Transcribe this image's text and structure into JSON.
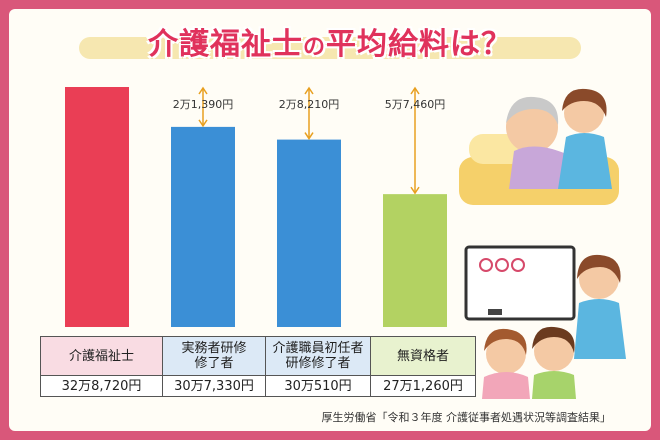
{
  "title_main": "介護福祉士",
  "title_no": "の",
  "title_tail": "平均給料は？",
  "source": "厚生労働省「令和３年度 介護従事者処遇状況等調査結果」",
  "chart_data": {
    "type": "bar",
    "categories": [
      "介護福祉士",
      "実務者研修\n修了者",
      "介護職員初任者\n研修修了者",
      "無資格者"
    ],
    "values": [
      328720,
      307330,
      300510,
      271260
    ],
    "value_labels": [
      "32万8,720円",
      "30万7,330円",
      "30万510円",
      "27万1,260円"
    ],
    "differences": [
      null,
      21390,
      28210,
      57460
    ],
    "difference_labels": [
      "",
      "2万1,390円",
      "2万8,210円",
      "5万7,460円"
    ],
    "colors": [
      "#ea3e55",
      "#3b8fd6",
      "#3b8fd6",
      "#b3d262"
    ],
    "arrow_color": "#e8a020",
    "grid": false
  }
}
